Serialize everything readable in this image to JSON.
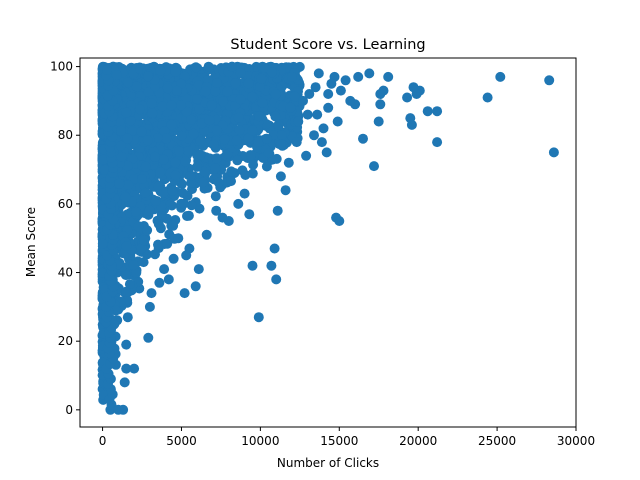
{
  "chart_data": {
    "type": "scatter",
    "title": "Student Score vs. Learning",
    "xlabel": "Number of Clicks",
    "ylabel": "Mean Score",
    "xlim": [
      -1430,
      30000
    ],
    "ylim": [
      -5,
      102.5
    ],
    "xticks": [
      0,
      5000,
      10000,
      15000,
      20000,
      25000,
      30000
    ],
    "yticks": [
      0,
      20,
      40,
      60,
      80,
      100
    ],
    "grid": false,
    "marker_color": "#1f77b4",
    "dense_region_note": "thousands of overlapping points; outliers listed below",
    "series": [
      {
        "points": [
          [
            28600,
            75
          ],
          [
            28300,
            96
          ],
          [
            25200,
            97
          ],
          [
            24400,
            91
          ],
          [
            21200,
            87
          ],
          [
            21200,
            78
          ],
          [
            20600,
            87
          ],
          [
            20100,
            93
          ],
          [
            19900,
            92
          ],
          [
            19700,
            94
          ],
          [
            19500,
            85
          ],
          [
            19600,
            83
          ],
          [
            19300,
            91
          ],
          [
            18100,
            97
          ],
          [
            17800,
            93
          ],
          [
            17600,
            92
          ],
          [
            17600,
            89
          ],
          [
            17500,
            84
          ],
          [
            17200,
            71
          ],
          [
            16900,
            98
          ],
          [
            16500,
            79
          ],
          [
            16200,
            97
          ],
          [
            16000,
            89
          ],
          [
            15700,
            90
          ],
          [
            15400,
            96
          ],
          [
            15100,
            93
          ],
          [
            14900,
            84
          ],
          [
            15000,
            55
          ],
          [
            14800,
            56
          ],
          [
            14700,
            97
          ],
          [
            14500,
            95
          ],
          [
            14300,
            92
          ],
          [
            14300,
            88
          ],
          [
            14200,
            75
          ],
          [
            14000,
            82
          ],
          [
            13900,
            78
          ],
          [
            13700,
            98
          ],
          [
            13500,
            94
          ],
          [
            13600,
            86
          ],
          [
            13400,
            80
          ],
          [
            13100,
            92
          ],
          [
            13000,
            86
          ],
          [
            12900,
            74
          ],
          [
            12700,
            90
          ],
          [
            12400,
            84
          ],
          [
            12300,
            78
          ],
          [
            12000,
            97
          ],
          [
            11900,
            88
          ],
          [
            11800,
            72
          ],
          [
            11600,
            64
          ],
          [
            11300,
            68
          ],
          [
            11100,
            58
          ],
          [
            10900,
            47
          ],
          [
            10700,
            42
          ],
          [
            11000,
            38
          ],
          [
            9900,
            27
          ],
          [
            9500,
            42
          ],
          [
            9300,
            57
          ],
          [
            9000,
            63
          ],
          [
            8600,
            60
          ],
          [
            8200,
            100
          ],
          [
            8000,
            55
          ],
          [
            7600,
            56
          ],
          [
            7200,
            58
          ],
          [
            6600,
            51
          ],
          [
            6100,
            41
          ],
          [
            5900,
            36
          ],
          [
            5500,
            47
          ],
          [
            5300,
            45
          ],
          [
            5200,
            34
          ],
          [
            4800,
            50
          ],
          [
            4500,
            44
          ],
          [
            4200,
            38
          ],
          [
            3900,
            41
          ],
          [
            3600,
            37
          ],
          [
            3100,
            34
          ],
          [
            3000,
            30
          ],
          [
            2900,
            21
          ],
          [
            2000,
            12
          ],
          [
            1600,
            27
          ],
          [
            1500,
            19
          ],
          [
            1400,
            8
          ],
          [
            1300,
            0
          ],
          [
            1000,
            0
          ],
          [
            1500,
            12
          ]
        ]
      }
    ]
  }
}
